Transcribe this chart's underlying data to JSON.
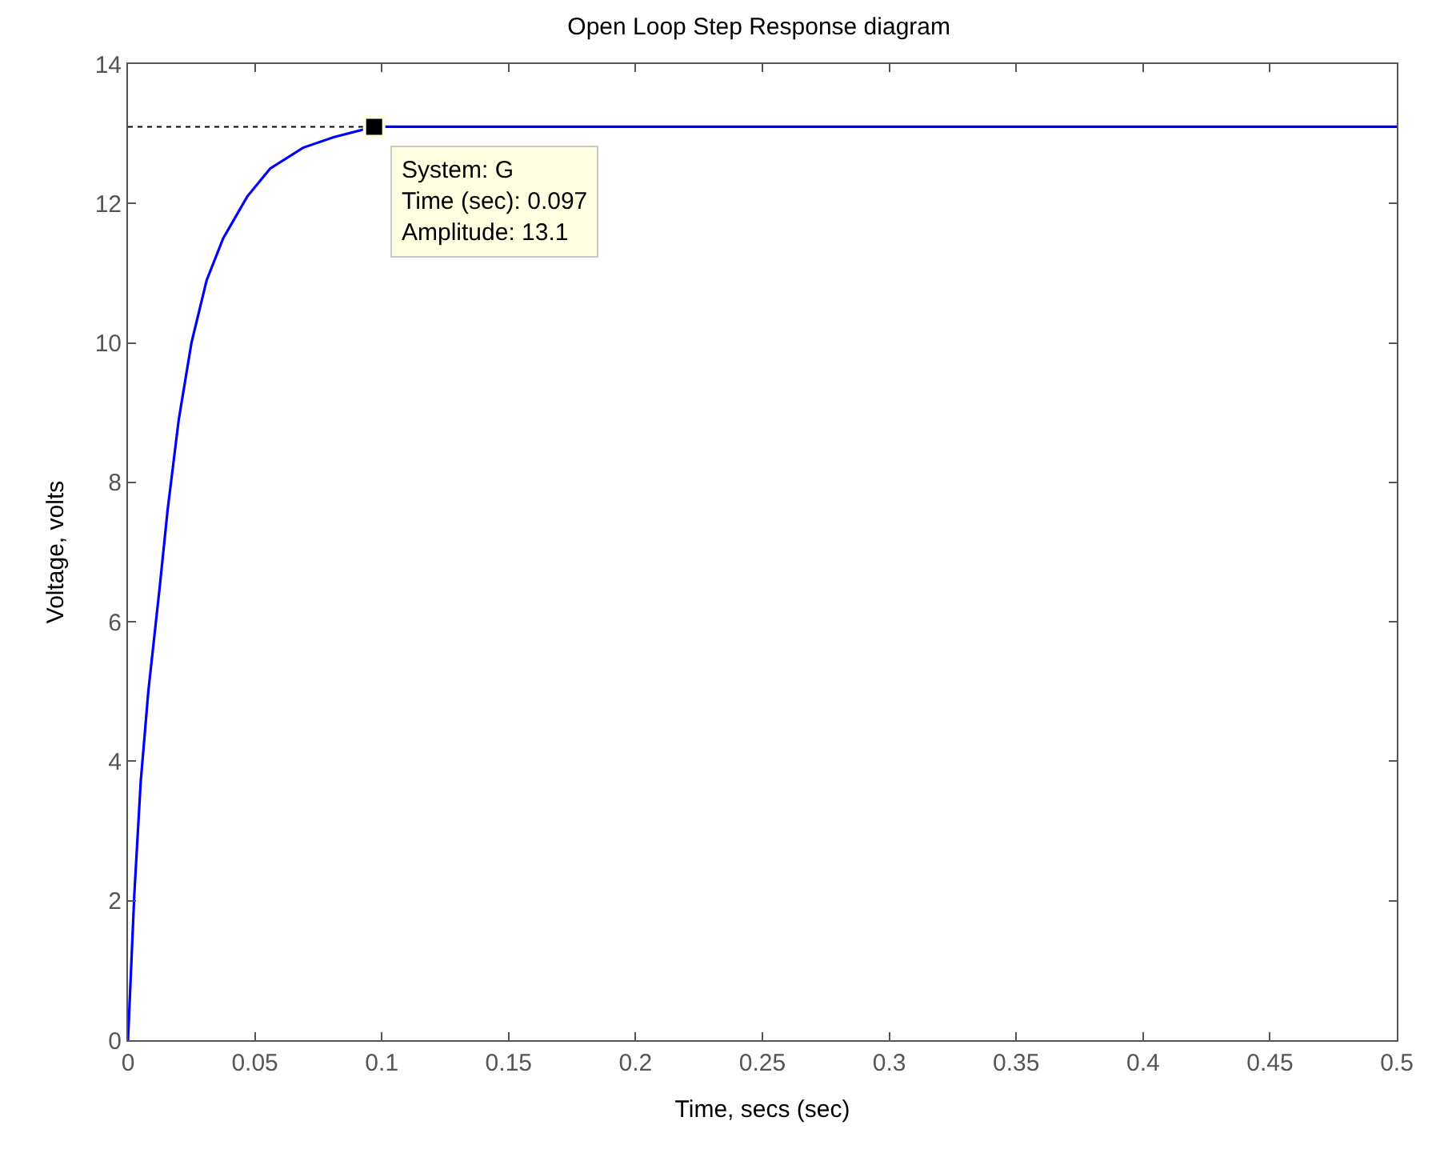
{
  "chart_data": {
    "type": "line",
    "title": "Open Loop Step Response diagram",
    "xlabel": "Time, secs (sec)",
    "ylabel": "Voltage, volts",
    "x": [
      0,
      0.0025,
      0.005,
      0.008,
      0.0125,
      0.0156,
      0.02,
      0.025,
      0.031,
      0.0375,
      0.047,
      0.056,
      0.069,
      0.081,
      0.097,
      0.13,
      0.2,
      0.3,
      0.4,
      0.5
    ],
    "series": [
      {
        "color": "#0000ff",
        "values": [
          0,
          2.1,
          3.7,
          5.0,
          6.5,
          7.6,
          8.9,
          10.0,
          10.9,
          11.5,
          12.1,
          12.5,
          12.8,
          12.95,
          13.1,
          13.1,
          13.1,
          13.1,
          13.1,
          13.1
        ]
      }
    ],
    "xlim": [
      0,
      0.5
    ],
    "xticks": [
      0,
      0.05,
      0.1,
      0.15,
      0.2,
      0.25,
      0.3,
      0.35,
      0.4,
      0.45,
      0.5
    ],
    "ylim": [
      0,
      14
    ],
    "yticks": [
      0,
      2,
      4,
      6,
      8,
      10,
      12,
      14
    ],
    "ref_lines": [
      {
        "axis": "y",
        "value": 13.1,
        "color": "#000000",
        "line_style": "dotted"
      }
    ],
    "annotations": [
      {
        "text": "System: G\nTime (sec): 0.097\nAmplitude: 13.1",
        "x": 0.097,
        "y": 13.1
      }
    ],
    "marker": "none",
    "line_style": "solid"
  }
}
